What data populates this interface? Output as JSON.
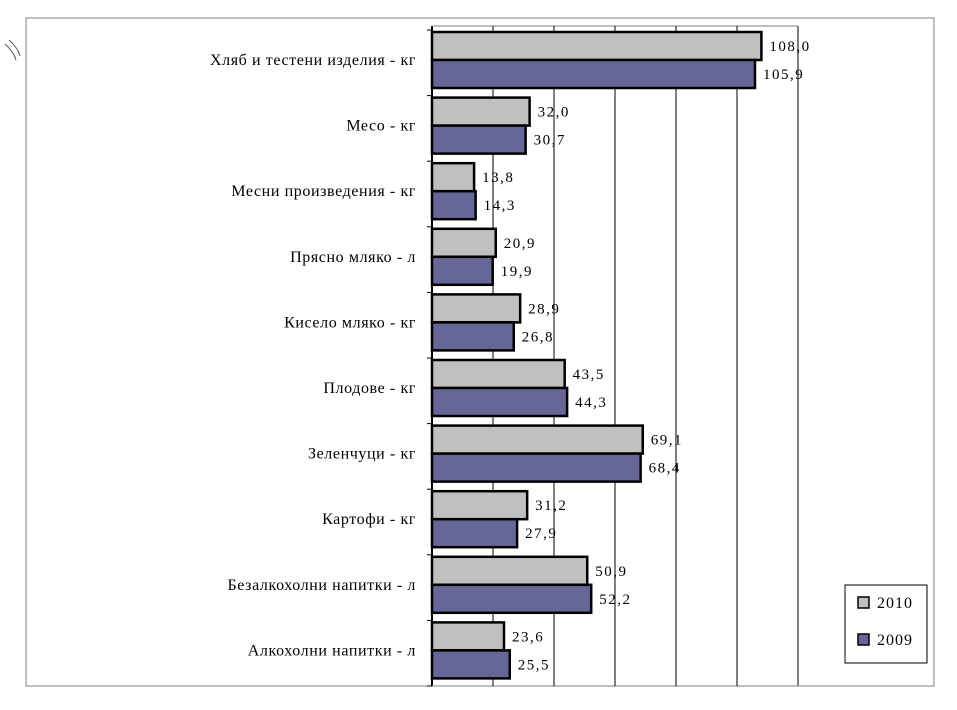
{
  "chart_data": {
    "type": "bar",
    "orientation": "horizontal",
    "categories": [
      "Хляб и тестени изделия - кг",
      "Месо - кг",
      "Месни произведения  - кг",
      "Прясно мляко - л",
      "Кисело мляко - кг",
      "Плодове - кг",
      "Зеленчуци - кг",
      "Картофи - кг",
      "Безалкохолни напитки - л",
      "Алкохолни напитки - л"
    ],
    "series": [
      {
        "name": "2010",
        "color": "#c0c0c0",
        "values": [
          108.0,
          32.0,
          13.8,
          20.9,
          28.9,
          43.5,
          69.1,
          31.2,
          50.9,
          23.6
        ],
        "labels": [
          "108,0",
          "32,0",
          "13,8",
          "20,9",
          "28,9",
          "43,5",
          "69,1",
          "31,2",
          "50,9",
          "23,6"
        ]
      },
      {
        "name": "2009",
        "color": "#666699",
        "values": [
          105.9,
          30.7,
          14.3,
          19.9,
          26.8,
          44.3,
          68.4,
          27.9,
          52.2,
          25.5
        ],
        "labels": [
          "105,9",
          "30,7",
          "14,3",
          "19,9",
          "26,8",
          "44,3",
          "68,4",
          "27,9",
          "52,2",
          "25,5"
        ]
      }
    ],
    "xlim": [
      0,
      120
    ],
    "grid": true,
    "legend_position": "bottom-right",
    "title": "",
    "xlabel": "",
    "ylabel": ""
  }
}
